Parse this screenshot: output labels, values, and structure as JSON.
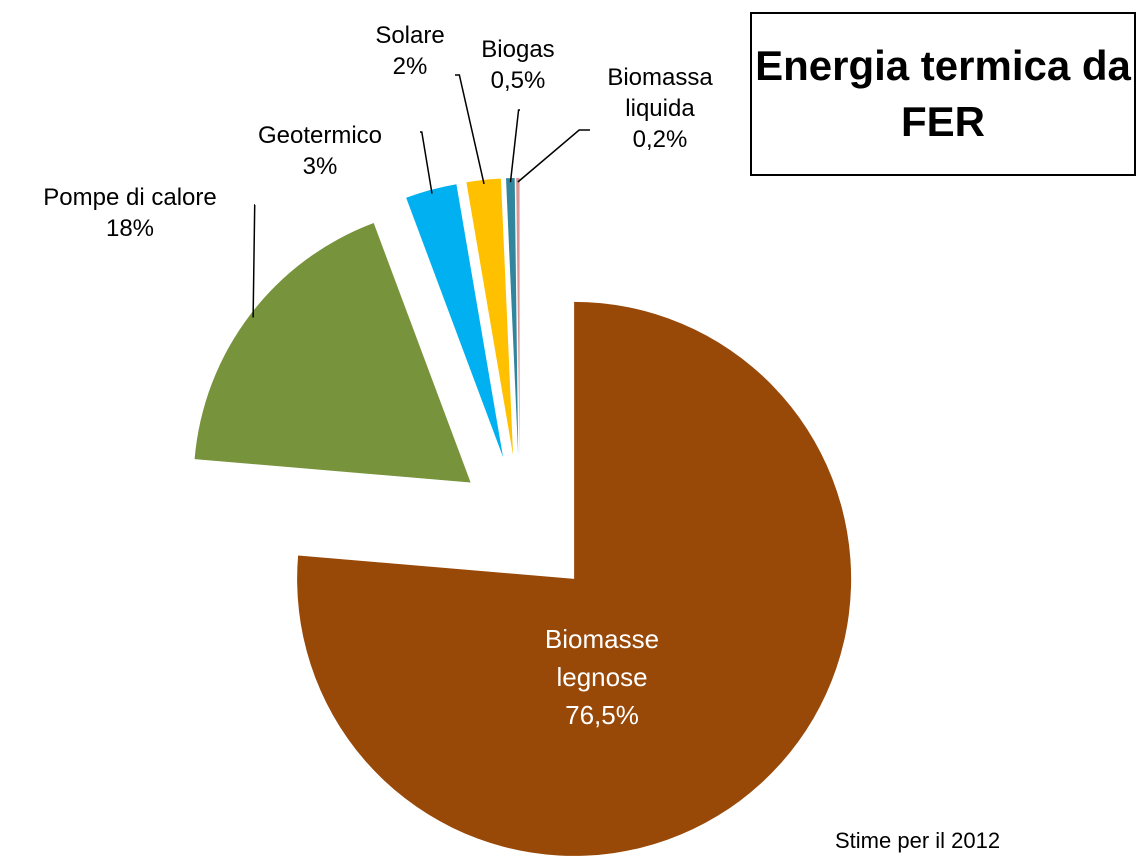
{
  "chart_data": {
    "type": "pie",
    "title": "Energia termica da FER",
    "note": "Stime per il 2012",
    "categories": [
      "Biomasse legnose",
      "Pompe di calore",
      "Geotermico",
      "Solare",
      "Biogas",
      "Biomassa liquida"
    ],
    "values": [
      76.5,
      18,
      3,
      2,
      0.5,
      0.2
    ],
    "value_labels": [
      "76,5%",
      "18%",
      "3%",
      "2%",
      "0,5%",
      "0,2%"
    ],
    "colors": [
      "#984807",
      "#77933c",
      "#00b0f0",
      "#ffc000",
      "#31859c",
      "#d99694"
    ]
  }
}
